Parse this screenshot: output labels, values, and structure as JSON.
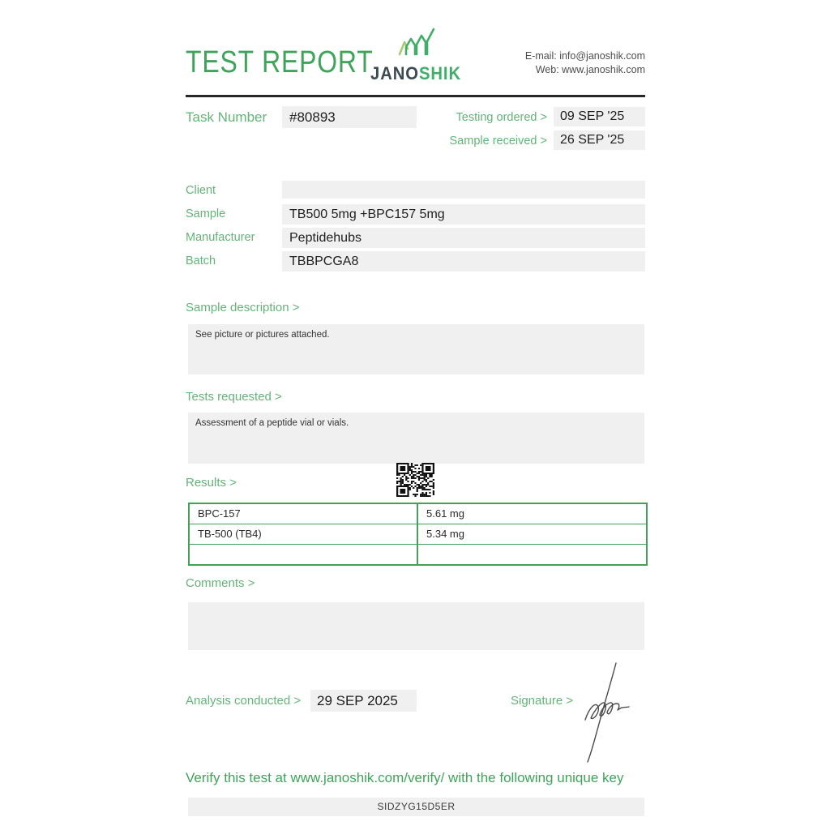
{
  "header": {
    "title": "TEST REPORT",
    "logo_text_dark": "JANO",
    "logo_text_green": "SHIK",
    "email_label": "E-mail:",
    "email_value": "info@janoshik.com",
    "web_label": "Web:",
    "web_value": "www.janoshik.com"
  },
  "task": {
    "label": "Task Number",
    "value": "#80893",
    "testing_ordered_label": "Testing ordered  >",
    "testing_ordered_value": "09 SEP '25",
    "sample_received_label": "Sample received >",
    "sample_received_value": "26 SEP '25"
  },
  "details": {
    "rows": [
      {
        "label": "Client",
        "value": ""
      },
      {
        "label": "Sample",
        "value": "TB500 5mg +BPC157 5mg"
      },
      {
        "label": "Manufacturer",
        "value": "Peptidehubs"
      },
      {
        "label": "Batch",
        "value": "TBBPCGA8"
      }
    ]
  },
  "sample_description": {
    "label": "Sample description >",
    "text": "See picture or pictures attached."
  },
  "tests_requested": {
    "label": "Tests requested >",
    "text": "Assessment of a peptide vial or vials."
  },
  "results": {
    "label": "Results >",
    "rows": [
      {
        "analyte": "BPC-157",
        "amount": "5.61 mg"
      },
      {
        "analyte": "TB-500 (TB4)",
        "amount": "5.34 mg"
      },
      {
        "analyte": "",
        "amount": ""
      }
    ]
  },
  "comments": {
    "label": "Comments >",
    "text": ""
  },
  "analysis": {
    "label": "Analysis conducted >",
    "value": "29 SEP 2025"
  },
  "signature": {
    "label": "Signature >"
  },
  "verify": {
    "text": "Verify this test at www.janoshik.com/verify/ with the following unique key",
    "key": "SIDZYG15D5ER"
  },
  "colors": {
    "green_title": "#3fa35b",
    "green_label": "#63b478",
    "text_dark": "#1e1e1e",
    "text_gray": "#4d4d4d",
    "box_bg": "#f0f0f0",
    "rule": "#282828",
    "table_border": "#42a159",
    "logo_dark": "#3d4a52",
    "logo_green": "#3fae68",
    "logo_light": "#a5cc74",
    "sig_ink": "#4a4a4a",
    "qr_ink": "#111111"
  }
}
